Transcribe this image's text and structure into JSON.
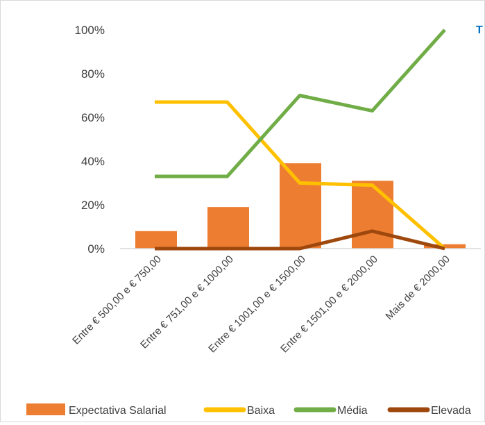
{
  "chart_data": {
    "type": "bar",
    "title_fragment": "T",
    "categories": [
      "Entre € 500,00 e € 750,00",
      "Entre € 751,00 e € 1000,00",
      "Entre € 1001,00 e € 1500,00",
      "Entre € 1501,00 e € 2000,00",
      "Mais de € 2000,00"
    ],
    "y_ticks": [
      "0%",
      "20%",
      "40%",
      "60%",
      "80%",
      "100%"
    ],
    "ylim": [
      0,
      100
    ],
    "grid": false,
    "legend_position": "bottom",
    "series": [
      {
        "name": "Expectativa Salarial",
        "kind": "bar",
        "color": "#ED7D31",
        "values": [
          8,
          19,
          39,
          31,
          2
        ]
      },
      {
        "name": "Baixa",
        "kind": "line",
        "color": "#FFC000",
        "values": [
          67,
          67,
          30,
          29,
          0
        ]
      },
      {
        "name": "Média",
        "kind": "line",
        "color": "#70AD47",
        "values": [
          33,
          33,
          70,
          63,
          100
        ]
      },
      {
        "name": "Elevada",
        "kind": "line",
        "color": "#9E480E",
        "values": [
          0,
          0,
          0,
          8,
          0
        ]
      }
    ],
    "title_color": "#0070C0",
    "axis_color": "#d9d9d9"
  }
}
